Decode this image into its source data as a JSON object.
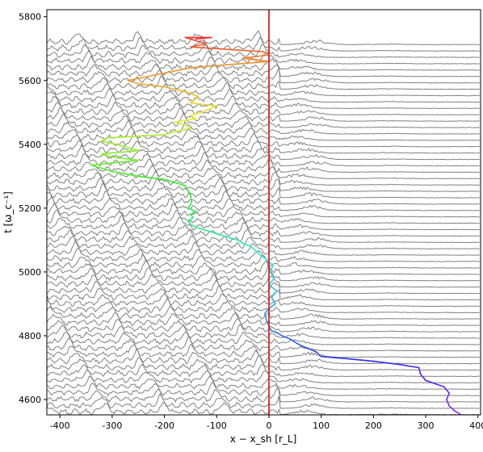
{
  "chart_data": {
    "type": "line",
    "xlabel": "x − x_sh [r_L]",
    "ylabel": "t [ω_c⁻¹]",
    "xlim": [
      -425,
      405
    ],
    "ylim": [
      4552,
      5822
    ],
    "xticks": [
      -400,
      -300,
      -200,
      -100,
      0,
      100,
      200,
      300,
      400
    ],
    "yticks": [
      4600,
      4800,
      5000,
      5200,
      5400,
      5600,
      5800
    ],
    "grid": false,
    "stack_lines": {
      "color": "#808080",
      "t_start": 4552,
      "t_end": 5722,
      "t_step": 20,
      "description_note": "stacked profiles, offset by time"
    },
    "vertical_line": {
      "x": 0,
      "color": "#d62728"
    },
    "trajectory": {
      "colormap": "rainbow",
      "x": [
        368,
        355,
        345,
        340,
        345,
        335,
        300,
        290,
        287,
        250,
        200,
        150,
        100,
        90,
        60,
        40,
        25,
        15,
        5,
        0,
        -5,
        -8,
        0,
        12,
        5,
        15,
        0,
        10,
        2,
        8,
        -5,
        -15,
        -20,
        -28,
        -35,
        -50,
        -60,
        -80,
        -100,
        -120,
        -140,
        -150,
        -155,
        -145,
        -150,
        -140,
        -155,
        -150,
        -148,
        -150,
        -160,
        -200,
        -250,
        -300,
        -340,
        -280,
        -250,
        -300,
        -320,
        -250,
        -280,
        -320,
        -310,
        -200,
        -180,
        -150,
        -160,
        -180,
        -140,
        -150,
        -130,
        -100,
        -150,
        -135,
        -160,
        -200,
        -250,
        -270,
        -150,
        0,
        -50,
        0,
        -10,
        -100,
        -150,
        -120,
        -140,
        -160,
        -110,
        -140
      ],
      "t": [
        4552,
        4565,
        4580,
        4600,
        4620,
        4640,
        4660,
        4680,
        4700,
        4710,
        4720,
        4728,
        4735,
        4750,
        4770,
        4790,
        4800,
        4810,
        4815,
        4830,
        4850,
        4870,
        4885,
        4900,
        4920,
        4940,
        4960,
        4980,
        5000,
        5020,
        5040,
        5050,
        5060,
        5070,
        5080,
        5090,
        5100,
        5110,
        5120,
        5130,
        5140,
        5150,
        5160,
        5170,
        5180,
        5190,
        5200,
        5210,
        5220,
        5240,
        5270,
        5290,
        5300,
        5315,
        5335,
        5345,
        5350,
        5360,
        5370,
        5380,
        5395,
        5410,
        5420,
        5430,
        5440,
        5450,
        5460,
        5470,
        5480,
        5490,
        5500,
        5520,
        5530,
        5550,
        5565,
        5580,
        5590,
        5600,
        5640,
        5660,
        5670,
        5680,
        5690,
        5700,
        5705,
        5715,
        5725,
        5735,
        5735,
        5730
      ]
    }
  }
}
